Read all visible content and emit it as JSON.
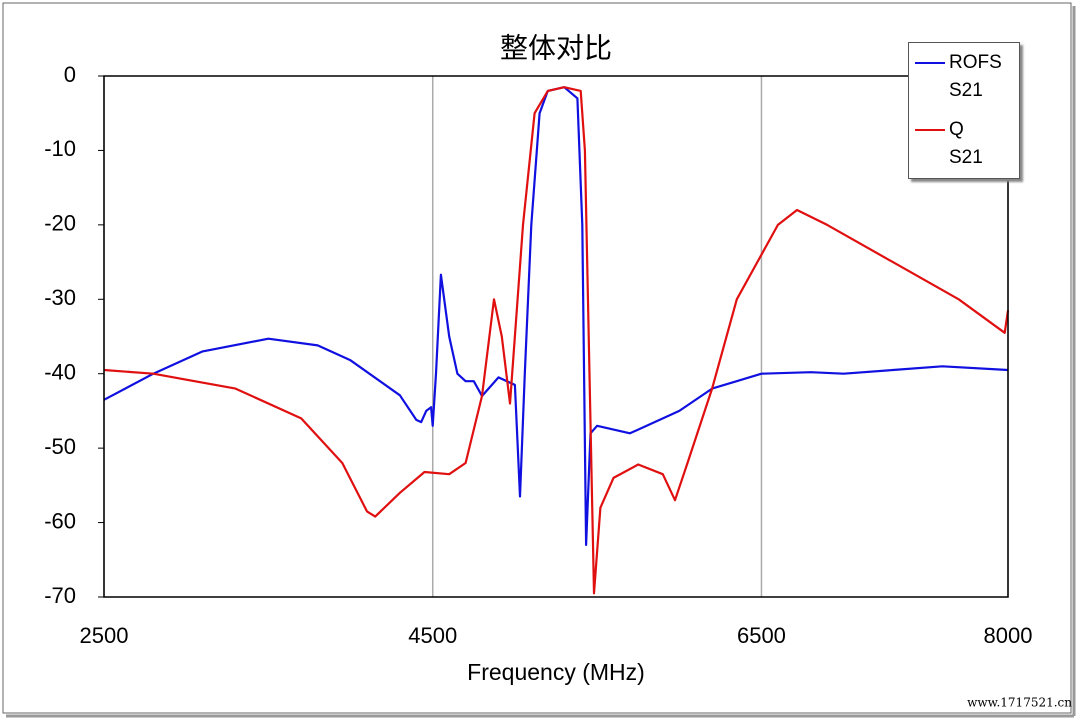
{
  "chart_data": {
    "type": "line",
    "title": "整体对比",
    "x_label": "Frequency (MHz)",
    "xlim": [
      2500,
      8000
    ],
    "xticks": [
      2500,
      4500,
      6500,
      8000
    ],
    "ylim": [
      -70,
      0
    ],
    "yticks": [
      0,
      -10,
      -20,
      -30,
      -40,
      -50,
      -60,
      -70
    ],
    "grid": "x",
    "legend": "top-right",
    "watermark": "www.1717521.cn",
    "series": [
      {
        "name": "ROFS S21",
        "color": "#1010e0",
        "x": [
          2500,
          2800,
          3100,
          3500,
          3800,
          4000,
          4300,
          4400,
          4430,
          4460,
          4490,
          4500,
          4520,
          4550,
          4600,
          4650,
          4700,
          4750,
          4800,
          4900,
          5000,
          5031,
          5060,
          5100,
          5150,
          5200,
          5300,
          5380,
          5410,
          5433,
          5460,
          5500,
          5700,
          6000,
          6200,
          6500,
          6800,
          7000,
          7300,
          7600,
          8000
        ],
        "values": [
          -43.5,
          -40,
          -37,
          -35.3,
          -36.2,
          -38.2,
          -42.9,
          -46.2,
          -46.5,
          -45,
          -44.5,
          -47,
          -40,
          -26.7,
          -35,
          -40,
          -41,
          -41,
          -43,
          -40.5,
          -41.5,
          -56.5,
          -40,
          -20,
          -5,
          -2,
          -1.5,
          -3,
          -20,
          -63,
          -48,
          -47,
          -48,
          -45,
          -42,
          -40,
          -39.8,
          -40,
          -39.5,
          -39,
          -39.5
        ]
      },
      {
        "name": "Q S21",
        "color": "#e01010",
        "x": [
          2500,
          2800,
          3300,
          3700,
          3950,
          4100,
          4150,
          4300,
          4450,
          4600,
          4700,
          4800,
          4873,
          4920,
          4970,
          5049,
          5120,
          5200,
          5300,
          5400,
          5426,
          5481,
          5520,
          5600,
          5750,
          5900,
          5974,
          6050,
          6200,
          6350,
          6600,
          6716,
          6900,
          7300,
          7700,
          7980,
          8000
        ],
        "values": [
          -39.5,
          -40,
          -42,
          -46,
          -52,
          -58.5,
          -59.2,
          -56,
          -53.2,
          -53.5,
          -52,
          -43,
          -30,
          -35,
          -44,
          -20,
          -5,
          -2,
          -1.5,
          -2,
          -10,
          -69.5,
          -58,
          -54,
          -52.2,
          -53.5,
          -57,
          -52,
          -42,
          -30,
          -20,
          -18,
          -20,
          -25,
          -30,
          -34.5,
          -31.5
        ]
      }
    ]
  }
}
